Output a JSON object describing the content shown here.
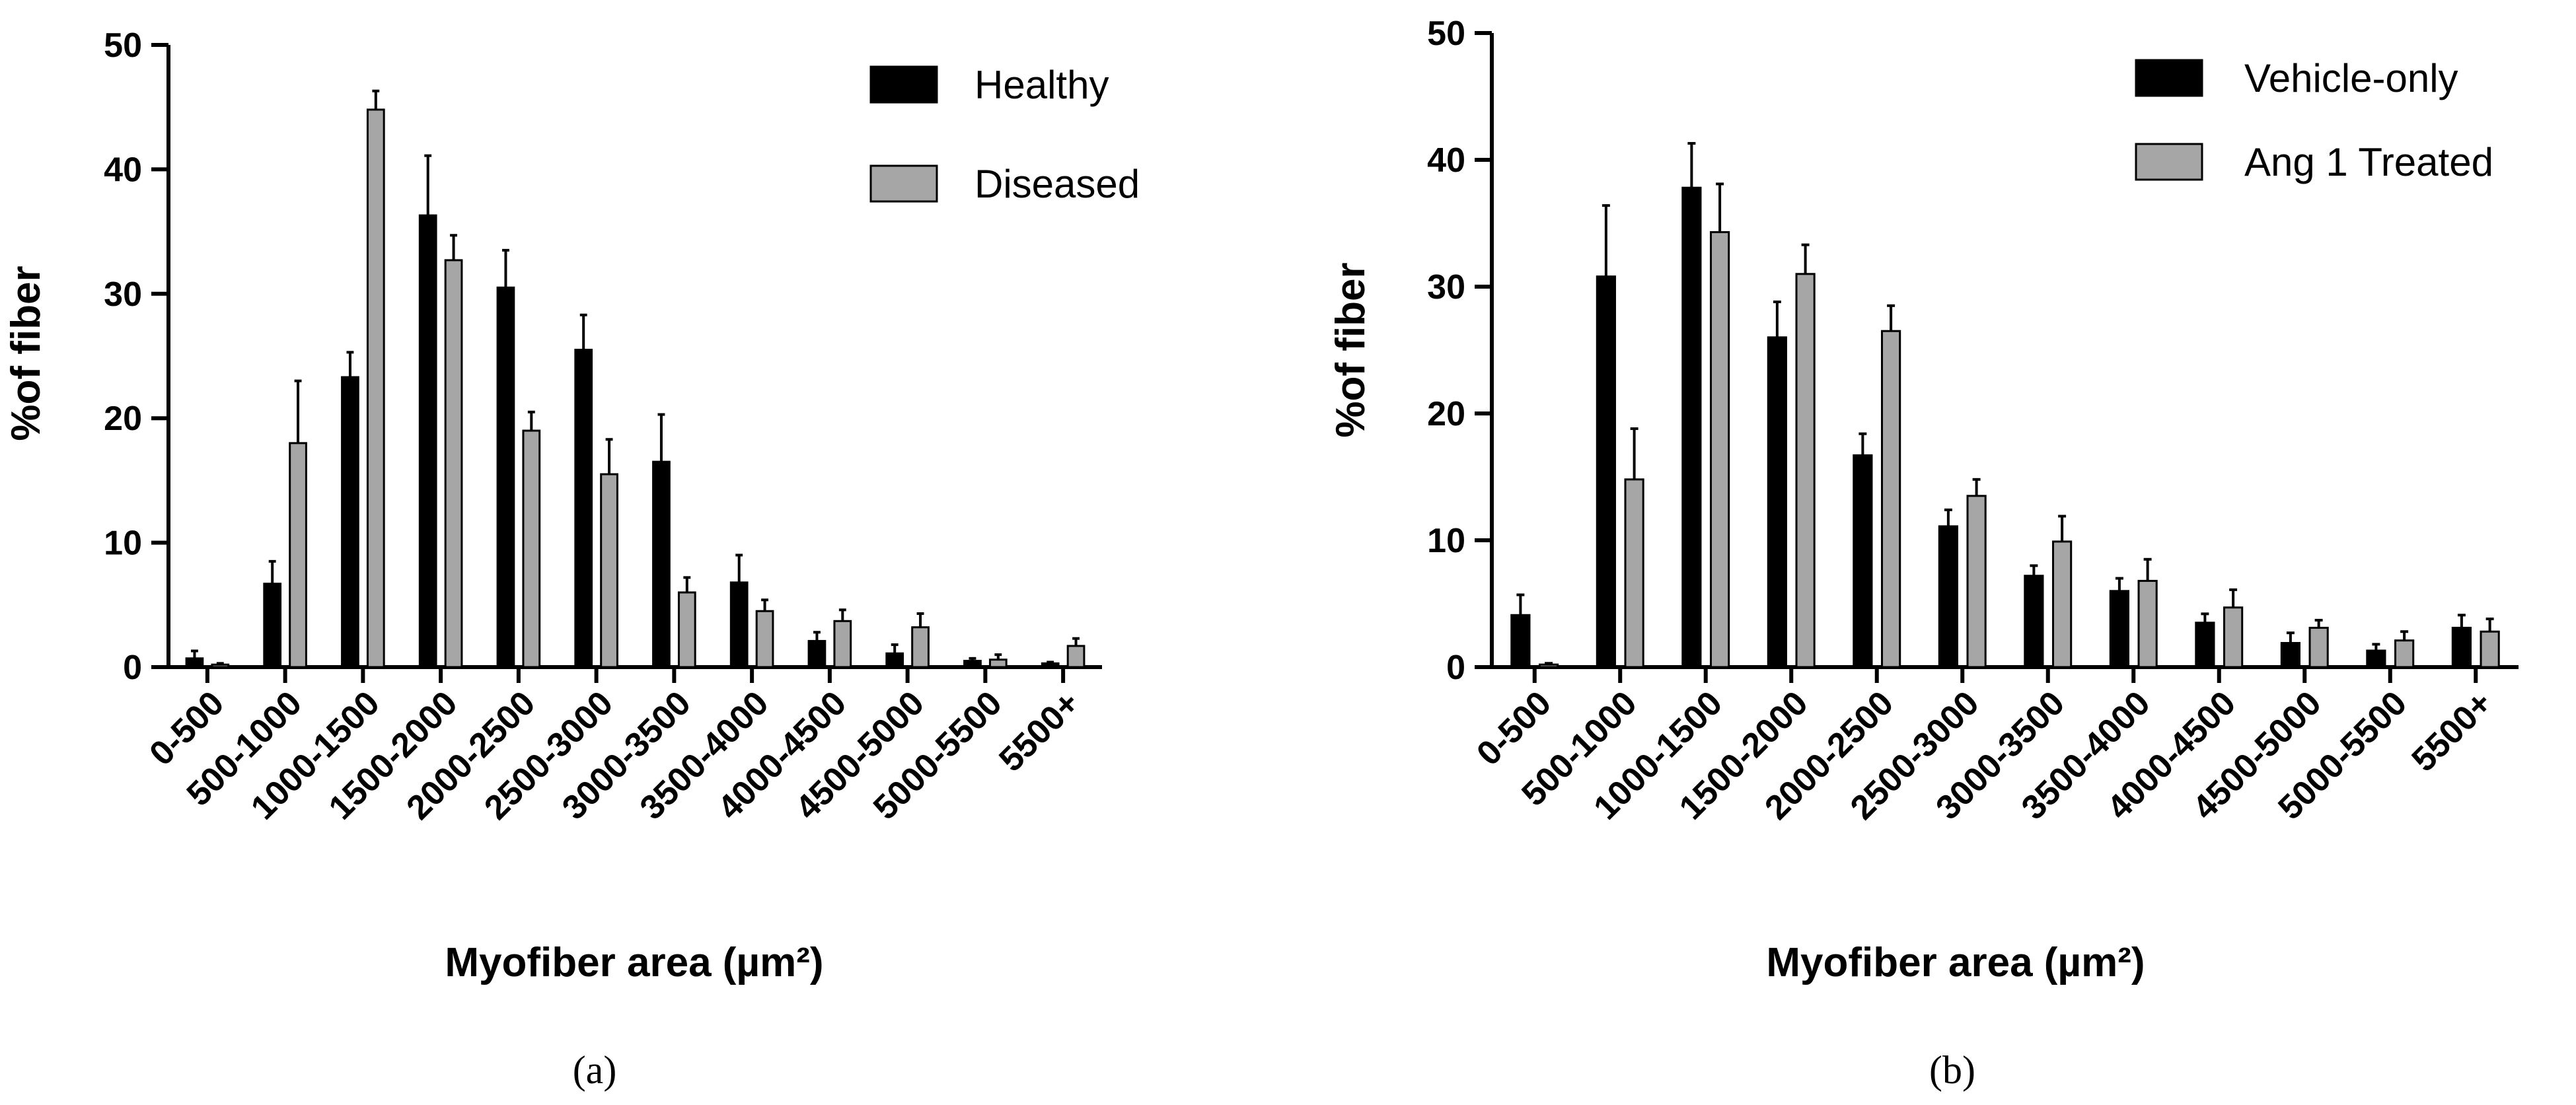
{
  "chart_data": [
    {
      "type": "bar",
      "panel_label": "(a)",
      "title": "",
      "xlabel": "Myofiber area (µm²)",
      "ylabel": "%of fiber",
      "ylim": [
        0,
        50
      ],
      "yticks": [
        "0",
        "10",
        "20",
        "30",
        "40",
        "50"
      ],
      "categories": [
        "0-500",
        "500-1000",
        "1000-1500",
        "1500-2000",
        "2000-2500",
        "2500-3000",
        "3000-3500",
        "3500-4000",
        "4000-4500",
        "4500-5000",
        "5000-5500",
        "5500+"
      ],
      "legend_position": "top-right",
      "series": [
        {
          "name": "Healthy",
          "color": "#000000",
          "values": [
            0.7,
            6.7,
            23.3,
            36.3,
            30.5,
            25.5,
            16.5,
            6.8,
            2.1,
            1.1,
            0.5,
            0.3
          ],
          "errors": [
            0.6,
            1.8,
            2.0,
            4.8,
            3.0,
            2.8,
            3.8,
            2.2,
            0.7,
            0.7,
            0.2,
            0.1
          ]
        },
        {
          "name": "Diseased",
          "color": "#a6a6a6",
          "values": [
            0.2,
            18.0,
            44.8,
            32.7,
            19.0,
            15.5,
            6.0,
            4.5,
            3.7,
            3.2,
            0.6,
            1.7
          ],
          "errors": [
            0.1,
            5.0,
            1.5,
            2.0,
            1.5,
            2.8,
            1.2,
            0.9,
            0.9,
            1.1,
            0.4,
            0.6
          ]
        }
      ]
    },
    {
      "type": "bar",
      "panel_label": "(b)",
      "title": "",
      "xlabel": "Myofiber area (µm²)",
      "ylabel": "%of fiber",
      "ylim": [
        0,
        50
      ],
      "yticks": [
        "0",
        "10",
        "20",
        "30",
        "40",
        "50"
      ],
      "categories": [
        "0-500",
        "500-1000",
        "1000-1500",
        "1500-2000",
        "2000-2500",
        "2500-3000",
        "3000-3500",
        "3500-4000",
        "4000-4500",
        "4500-5000",
        "5000-5500",
        "5500+"
      ],
      "legend_position": "top-right",
      "series": [
        {
          "name": "Vehicle-only",
          "color": "#000000",
          "values": [
            4.1,
            30.8,
            37.8,
            26.0,
            16.7,
            11.1,
            7.2,
            6.0,
            3.5,
            1.9,
            1.3,
            3.1
          ],
          "errors": [
            1.6,
            5.6,
            3.5,
            2.8,
            1.7,
            1.3,
            0.8,
            1.0,
            0.7,
            0.8,
            0.5,
            1.0
          ]
        },
        {
          "name": "Ang 1 Treated",
          "color": "#a6a6a6",
          "values": [
            0.2,
            14.8,
            34.3,
            31.0,
            26.5,
            13.5,
            9.9,
            6.8,
            4.7,
            3.1,
            2.1,
            2.8
          ],
          "errors": [
            0.1,
            4.0,
            3.8,
            2.3,
            2.0,
            1.3,
            2.0,
            1.7,
            1.4,
            0.6,
            0.7,
            1.0
          ]
        }
      ]
    }
  ]
}
